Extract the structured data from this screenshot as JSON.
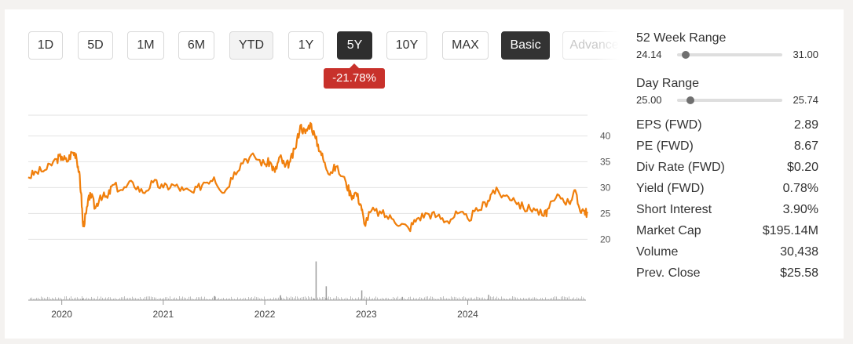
{
  "periods": {
    "d1": "1D",
    "d5": "5D",
    "m1": "1M",
    "m6": "6M",
    "ytd": "YTD",
    "y1": "1Y",
    "y5": "5Y",
    "y10": "10Y",
    "max": "MAX"
  },
  "modes": {
    "basic": "Basic",
    "advanced": "Advanced"
  },
  "performance_badge": "-21.78%",
  "chart_data": {
    "type": "line",
    "title": "",
    "series_color": "#f07f0c",
    "volume_color": "#bdbdbd",
    "x_tick_labels": [
      "2020",
      "2021",
      "2022",
      "2023",
      "2024"
    ],
    "y_tick_labels": [
      "40",
      "35",
      "30",
      "25",
      "20"
    ],
    "ylim": [
      19,
      44
    ],
    "price_points": [
      [
        2019.67,
        32
      ],
      [
        2019.75,
        33
      ],
      [
        2019.85,
        33.5
      ],
      [
        2019.95,
        35.5
      ],
      [
        2020.0,
        36
      ],
      [
        2020.05,
        35
      ],
      [
        2020.1,
        36.8
      ],
      [
        2020.14,
        36.5
      ],
      [
        2020.17,
        33
      ],
      [
        2020.19,
        29
      ],
      [
        2020.21,
        22.5
      ],
      [
        2020.24,
        25
      ],
      [
        2020.28,
        29
      ],
      [
        2020.33,
        26
      ],
      [
        2020.38,
        28.5
      ],
      [
        2020.45,
        28
      ],
      [
        2020.5,
        30.5
      ],
      [
        2020.6,
        29.5
      ],
      [
        2020.7,
        31
      ],
      [
        2020.8,
        29
      ],
      [
        2020.9,
        31
      ],
      [
        2021.0,
        30
      ],
      [
        2021.1,
        30.5
      ],
      [
        2021.2,
        29.5
      ],
      [
        2021.3,
        29
      ],
      [
        2021.4,
        31
      ],
      [
        2021.5,
        32
      ],
      [
        2021.6,
        29
      ],
      [
        2021.7,
        33
      ],
      [
        2021.8,
        35.5
      ],
      [
        2021.9,
        36
      ],
      [
        2022.0,
        34.5
      ],
      [
        2022.05,
        35
      ],
      [
        2022.1,
        33
      ],
      [
        2022.15,
        36
      ],
      [
        2022.2,
        34
      ],
      [
        2022.25,
        35
      ],
      [
        2022.3,
        37.5
      ],
      [
        2022.35,
        42
      ],
      [
        2022.4,
        40.5
      ],
      [
        2022.45,
        42.5
      ],
      [
        2022.5,
        39.5
      ],
      [
        2022.55,
        37
      ],
      [
        2022.6,
        34
      ],
      [
        2022.65,
        33
      ],
      [
        2022.7,
        34
      ],
      [
        2022.8,
        31
      ],
      [
        2022.85,
        28.5
      ],
      [
        2022.9,
        29
      ],
      [
        2022.95,
        26.5
      ],
      [
        2022.98,
        23
      ],
      [
        2023.05,
        25.5
      ],
      [
        2023.15,
        25
      ],
      [
        2023.25,
        24
      ],
      [
        2023.35,
        23
      ],
      [
        2023.42,
        22
      ],
      [
        2023.5,
        24
      ],
      [
        2023.6,
        25
      ],
      [
        2023.7,
        24.5
      ],
      [
        2023.8,
        23.5
      ],
      [
        2023.9,
        25
      ],
      [
        2024.0,
        24
      ],
      [
        2024.1,
        25.5
      ],
      [
        2024.2,
        27.5
      ],
      [
        2024.25,
        29.5
      ],
      [
        2024.35,
        28.5
      ],
      [
        2024.45,
        28
      ],
      [
        2024.55,
        26
      ],
      [
        2024.65,
        26
      ],
      [
        2024.75,
        24.5
      ],
      [
        2024.8,
        26
      ],
      [
        2024.9,
        28.5
      ],
      [
        2025.0,
        27
      ],
      [
        2025.05,
        29.5
      ],
      [
        2025.1,
        26
      ],
      [
        2025.15,
        25.5
      ],
      [
        2025.18,
        25
      ]
    ],
    "volume_spikes": [
      [
        2020.2,
        0.04
      ],
      [
        2021.5,
        0.1
      ],
      [
        2022.15,
        0.12
      ],
      [
        2022.48,
        0.04
      ],
      [
        2022.5,
        0.95
      ],
      [
        2022.6,
        0.34
      ],
      [
        2022.95,
        0.24
      ],
      [
        2023.35,
        0.08
      ],
      [
        2024.2,
        0.13
      ]
    ]
  },
  "sidebar": {
    "week52": {
      "label": "52 Week Range",
      "low": "24.14",
      "high": "31.00",
      "position": 0.08
    },
    "day": {
      "label": "Day Range",
      "low": "25.00",
      "high": "25.74",
      "position": 0.13
    },
    "stats": [
      {
        "label": "EPS (FWD)",
        "value": "2.89"
      },
      {
        "label": "PE (FWD)",
        "value": "8.67"
      },
      {
        "label": "Div Rate (FWD)",
        "value": "$0.20"
      },
      {
        "label": "Yield (FWD)",
        "value": "0.78%"
      },
      {
        "label": "Short Interest",
        "value": "3.90%"
      },
      {
        "label": "Market Cap",
        "value": "$195.14M"
      },
      {
        "label": "Volume",
        "value": "30,438"
      },
      {
        "label": "Prev. Close",
        "value": "$25.58"
      }
    ]
  }
}
